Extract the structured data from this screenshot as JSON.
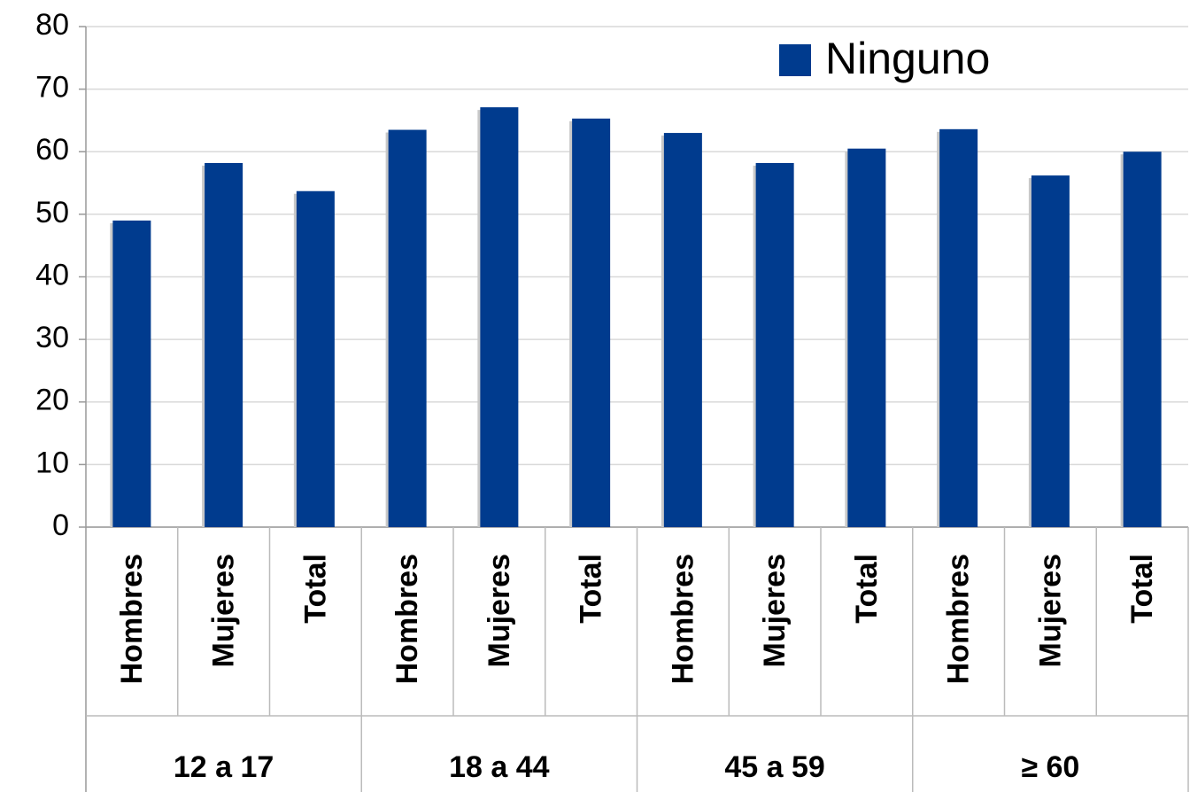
{
  "chart_data": {
    "type": "bar",
    "categories": [
      "Hombres",
      "Mujeres",
      "Total",
      "Hombres",
      "Mujeres",
      "Total",
      "Hombres",
      "Mujeres",
      "Total",
      "Hombres",
      "Mujeres",
      "Total"
    ],
    "groups": [
      "12 a 17",
      "18 a 44",
      "45 a 59",
      "≥ 60"
    ],
    "series": [
      {
        "name": "Ninguno",
        "color": "#003b8e",
        "values": [
          49,
          58.2,
          53.7,
          63.5,
          67.1,
          65.3,
          63,
          58.2,
          60.5,
          63.6,
          56.2,
          60
        ]
      }
    ],
    "ylim": [
      0,
      80
    ],
    "yticks": [
      0,
      10,
      20,
      30,
      40,
      50,
      60,
      70,
      80
    ],
    "grid": true,
    "legend": "top right"
  }
}
